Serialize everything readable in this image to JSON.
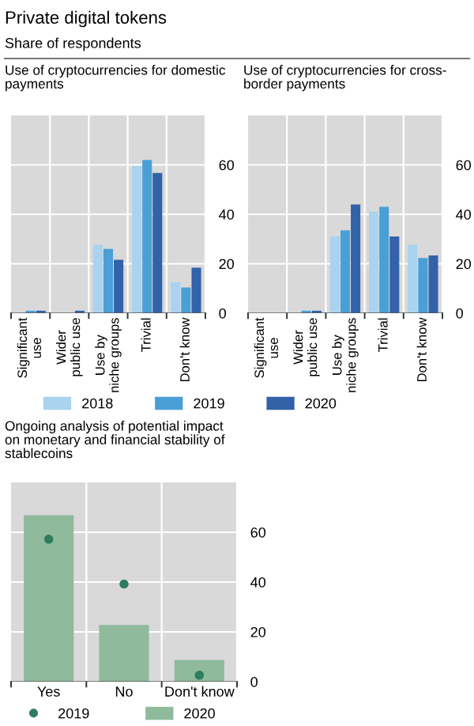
{
  "chart_data": [
    {
      "type": "bar",
      "title": "Use of cryptocurrencies for domestic\npayments",
      "annotations": [
        "Private digital tokens",
        "Share of respondents"
      ],
      "categories": [
        "Significant\nuse",
        "Wider\npublic use",
        "Use by\nniche groups",
        "Trivial",
        "Don't know"
      ],
      "series": [
        {
          "name": "2018",
          "color": "#a9d3ef",
          "values": [
            0,
            0,
            27.7,
            59.5,
            12.5
          ]
        },
        {
          "name": "2019",
          "color": "#4a9fd6",
          "values": [
            1,
            0,
            26,
            62,
            10.4
          ]
        },
        {
          "name": "2020",
          "color": "#3262a8",
          "values": [
            1,
            1,
            21.6,
            56.7,
            18.4
          ]
        }
      ],
      "ylim": [
        0,
        80
      ],
      "yticks": [
        0,
        20,
        40,
        60
      ],
      "grid": true,
      "legend": "bottom"
    },
    {
      "type": "bar",
      "title": "Use of cryptocurrencies for cross-\nborder payments",
      "categories": [
        "Significant\nuse",
        "Wider\npublic use",
        "Use by\nniche groups",
        "Trivial",
        "Don't know"
      ],
      "series": [
        {
          "color": "#a9d3ef",
          "values": [
            0,
            0,
            31,
            41,
            27.7
          ]
        },
        {
          "color": "#4a9fd6",
          "values": [
            0,
            1,
            33.5,
            43,
            22.3
          ]
        },
        {
          "color": "#3262a8",
          "values": [
            0,
            1,
            44,
            31,
            23.4
          ]
        }
      ],
      "ylim": [
        0,
        80
      ],
      "yticks": [
        0,
        20,
        40,
        60
      ],
      "grid": true
    },
    {
      "type": "bar",
      "title": "Ongoing analysis of potential impact\non monetary and financial stability of\nstablecoins",
      "categories": [
        "Yes",
        "No",
        "Don't know"
      ],
      "series": [
        {
          "name": "2019",
          "type": "scatter",
          "color": "#2e7d5e",
          "values": [
            57.2,
            39.2,
            2.6
          ],
          "marker": "circle"
        },
        {
          "name": "2020",
          "type": "bar",
          "color": "#8fba9c",
          "values": [
            66.8,
            22.8,
            8.7
          ]
        }
      ],
      "ylim": [
        0,
        80
      ],
      "yticks": [
        0,
        20,
        40,
        60
      ],
      "grid": true,
      "legend": "bottom"
    }
  ]
}
